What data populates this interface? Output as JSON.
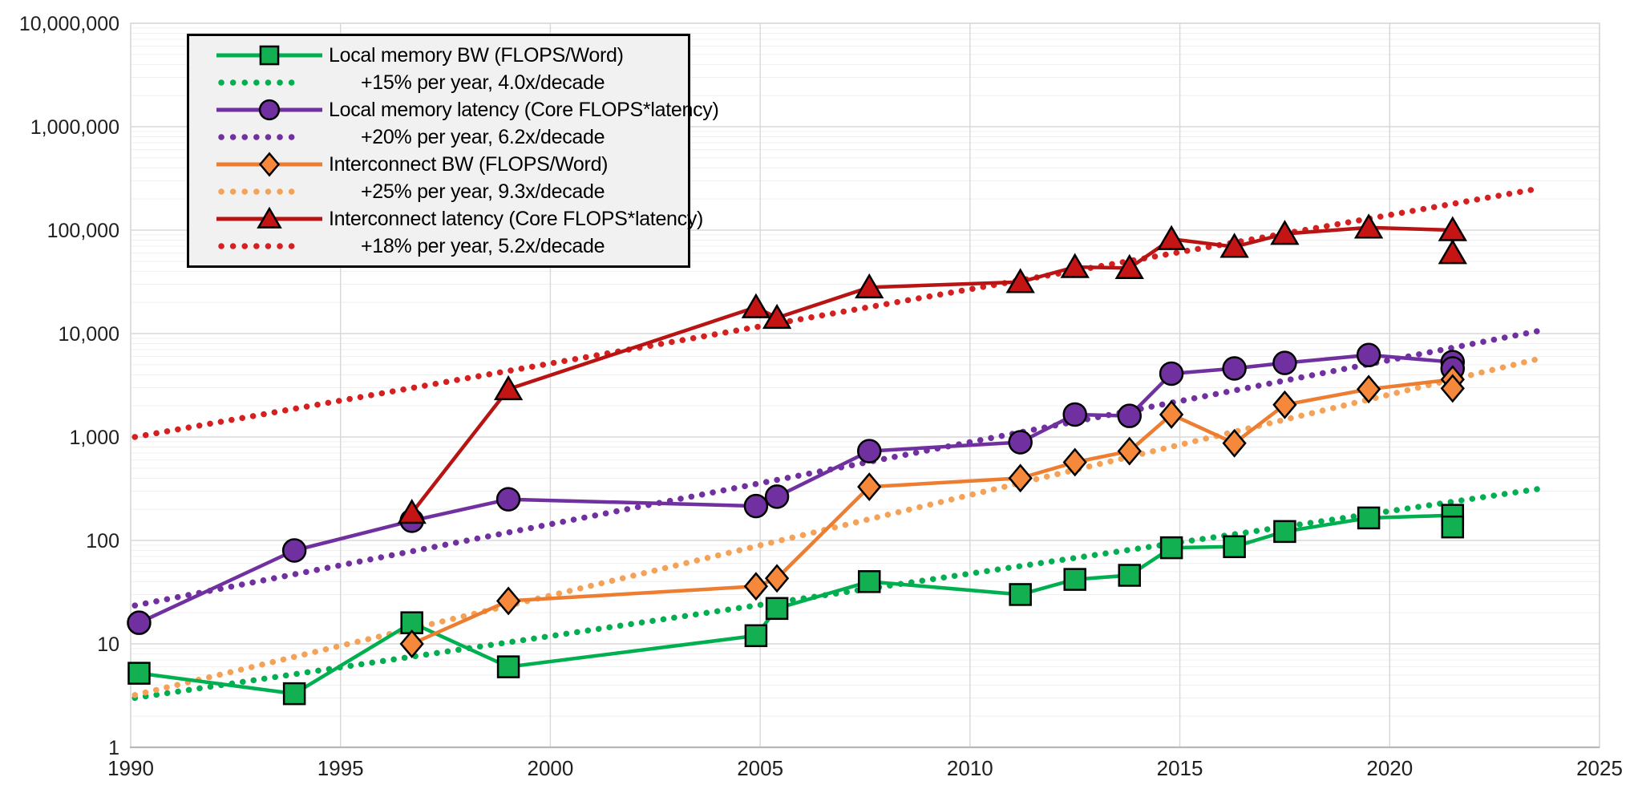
{
  "chart_data": {
    "type": "line",
    "title": "",
    "xlabel": "",
    "ylabel": "",
    "x_axis": {
      "range": [
        1990,
        2025
      ],
      "ticks": [
        "1990",
        "1995",
        "2000",
        "2005",
        "2010",
        "2015",
        "2020",
        "2025"
      ]
    },
    "y_axis": {
      "scale": "log",
      "range": [
        1,
        10000000
      ],
      "tick_labels": [
        "1",
        "10",
        "100",
        "1,000",
        "10,000",
        "100,000",
        "1,000,000",
        "10,000,000"
      ]
    },
    "grid": {
      "horizontal_major": true,
      "horizontal_log_minor": true,
      "vertical_major": true
    },
    "legend_position": "top-left",
    "series": [
      {
        "name": "Local memory BW (FLOPS/Word)",
        "marker": "square",
        "color": "#00B050",
        "marker_fill": "#12B050",
        "points": [
          [
            1990.2,
            5.2
          ],
          [
            1993.9,
            3.3
          ],
          [
            1996.7,
            16
          ],
          [
            1999.0,
            6.0
          ],
          [
            2004.9,
            12
          ],
          [
            2005.4,
            22
          ],
          [
            2007.6,
            40
          ],
          [
            2011.2,
            30
          ],
          [
            2012.5,
            42
          ],
          [
            2013.8,
            46
          ],
          [
            2014.8,
            85
          ],
          [
            2016.3,
            87
          ],
          [
            2017.5,
            122
          ],
          [
            2019.5,
            165
          ],
          [
            2021.5,
            175
          ],
          [
            2021.5,
            135
          ]
        ]
      },
      {
        "name": "Local memory latency (Core FLOPS*latency)",
        "marker": "circle",
        "color": "#7030A0",
        "marker_fill": "#7030A0",
        "points": [
          [
            1990.2,
            16
          ],
          [
            1993.9,
            80
          ],
          [
            1996.7,
            155
          ],
          [
            1999.0,
            250
          ],
          [
            2004.9,
            215
          ],
          [
            2005.4,
            265
          ],
          [
            2007.6,
            730
          ],
          [
            2011.2,
            890
          ],
          [
            2012.5,
            1650
          ],
          [
            2013.8,
            1600
          ],
          [
            2014.8,
            4100
          ],
          [
            2016.3,
            4600
          ],
          [
            2017.5,
            5200
          ],
          [
            2019.5,
            6200
          ],
          [
            2021.5,
            5300
          ],
          [
            2021.5,
            4600
          ]
        ]
      },
      {
        "name": "Interconnect BW (FLOPS/Word)",
        "marker": "diamond",
        "color": "#ED7D31",
        "marker_fill": "#F5883B",
        "points": [
          [
            1996.7,
            10
          ],
          [
            1999.0,
            26
          ],
          [
            2004.9,
            36
          ],
          [
            2005.4,
            43
          ],
          [
            2007.6,
            330
          ],
          [
            2011.2,
            400
          ],
          [
            2012.5,
            570
          ],
          [
            2013.8,
            730
          ],
          [
            2014.8,
            1650
          ],
          [
            2016.3,
            870
          ],
          [
            2017.5,
            2050
          ],
          [
            2019.5,
            2900
          ],
          [
            2021.5,
            3600
          ],
          [
            2021.5,
            2950
          ]
        ]
      },
      {
        "name": "Interconnect latency (Core FLOPS*latency)",
        "marker": "triangle",
        "color": "#B81414",
        "marker_fill": "#C41414",
        "points": [
          [
            1996.7,
            185
          ],
          [
            1999.0,
            2900
          ],
          [
            2004.9,
            18000
          ],
          [
            2005.4,
            14200
          ],
          [
            2007.6,
            28000
          ],
          [
            2011.2,
            31500
          ],
          [
            2012.5,
            44000
          ],
          [
            2013.8,
            43000
          ],
          [
            2014.8,
            82000
          ],
          [
            2016.3,
            69000
          ],
          [
            2017.5,
            92000
          ],
          [
            2019.5,
            106000
          ],
          [
            2021.5,
            100000
          ],
          [
            2021.5,
            60000
          ]
        ]
      }
    ],
    "trends": [
      {
        "name": "+15% per year, 4.0x/decade",
        "color": "#00B050",
        "start": [
          1990.1,
          3.0
        ],
        "end": [
          2023.6,
          317
        ]
      },
      {
        "name": "+20% per year, 6.2x/decade",
        "color": "#7030A0",
        "start": [
          1990.1,
          23.5
        ],
        "end": [
          2023.6,
          10700
        ]
      },
      {
        "name": "+25% per year, 9.3x/decade",
        "color": "#F4A258",
        "start": [
          1990.1,
          3.2
        ],
        "end": [
          2023.6,
          5760
        ]
      },
      {
        "name": "+18% per year, 5.2x/decade",
        "color": "#D42020",
        "start": [
          1990.1,
          1000
        ],
        "end": [
          2023.6,
          254000
        ]
      }
    ],
    "legend": [
      {
        "label": "Local memory BW (FLOPS/Word)",
        "swatch": "line-square",
        "color": "#00B050"
      },
      {
        "label": "+15% per year, 4.0x/decade",
        "swatch": "dots",
        "color": "#00B050"
      },
      {
        "label": "Local memory latency (Core FLOPS*latency)",
        "swatch": "line-circle",
        "color": "#7030A0"
      },
      {
        "label": "+20% per year, 6.2x/decade",
        "swatch": "dots",
        "color": "#7030A0"
      },
      {
        "label": "Interconnect BW (FLOPS/Word)",
        "swatch": "line-diamond",
        "color": "#ED7D31"
      },
      {
        "label": "+25% per year, 9.3x/decade",
        "swatch": "dots",
        "color": "#F4A258"
      },
      {
        "label": "Interconnect latency (Core FLOPS*latency)",
        "swatch": "line-triangle",
        "color": "#B81414"
      },
      {
        "label": "+18% per year, 5.2x/decade",
        "swatch": "dots",
        "color": "#D42020"
      }
    ],
    "colors": {
      "grid_minor": "#EFEFEF",
      "grid_major": "#D8D8D8",
      "axis_line": "#B8B8B8",
      "tick_text": "#1f1f1f",
      "legend_bg": "#F1F1F1"
    }
  }
}
